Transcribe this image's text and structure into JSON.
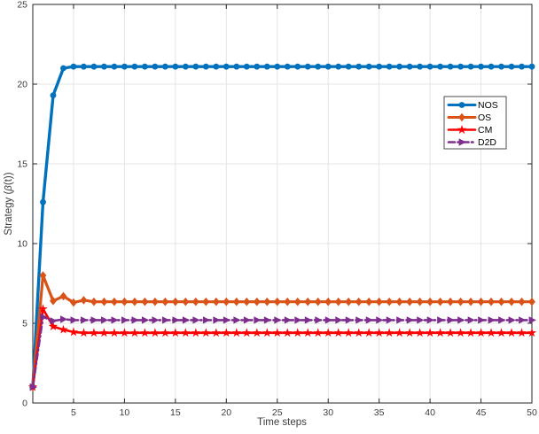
{
  "figure": {
    "background": "#ffffff",
    "axis_color": "#262626",
    "grid_color": "#e4e4e4",
    "tick_label_color": "#3b3b3b",
    "legend_border_color": "#4d4d4d"
  },
  "chart_data": {
    "type": "line",
    "title": "",
    "xlabel": "Time steps",
    "ylabel": "Strategy (β(t))",
    "xlim": [
      1,
      50
    ],
    "ylim": [
      0,
      25
    ],
    "xticks": [
      5,
      10,
      15,
      20,
      25,
      30,
      35,
      40,
      45,
      50
    ],
    "yticks": [
      0,
      5,
      10,
      15,
      20,
      25
    ],
    "grid": true,
    "legend_position": "upper-right-inside",
    "x": [
      1,
      2,
      3,
      4,
      5,
      6,
      7,
      8,
      9,
      10,
      11,
      12,
      13,
      14,
      15,
      16,
      17,
      18,
      19,
      20,
      21,
      22,
      23,
      24,
      25,
      26,
      27,
      28,
      29,
      30,
      31,
      32,
      33,
      34,
      35,
      36,
      37,
      38,
      39,
      40,
      41,
      42,
      43,
      44,
      45,
      46,
      47,
      48,
      49,
      50
    ],
    "series": [
      {
        "name": "NOS",
        "color": "#0072BD",
        "marker": "circle",
        "line_style": "solid",
        "line_width": 3.4,
        "values": [
          1.0,
          12.6,
          19.3,
          21.0,
          21.1,
          21.1,
          21.1,
          21.1,
          21.1,
          21.1,
          21.1,
          21.1,
          21.1,
          21.1,
          21.1,
          21.1,
          21.1,
          21.1,
          21.1,
          21.1,
          21.1,
          21.1,
          21.1,
          21.1,
          21.1,
          21.1,
          21.1,
          21.1,
          21.1,
          21.1,
          21.1,
          21.1,
          21.1,
          21.1,
          21.1,
          21.1,
          21.1,
          21.1,
          21.1,
          21.1,
          21.1,
          21.1,
          21.1,
          21.1,
          21.1,
          21.1,
          21.1,
          21.1,
          21.1,
          21.1
        ]
      },
      {
        "name": "OS",
        "color": "#D95319",
        "marker": "diamond",
        "line_style": "solid",
        "line_width": 3.2,
        "values": [
          1.0,
          8.0,
          6.4,
          6.7,
          6.3,
          6.45,
          6.35,
          6.35,
          6.35,
          6.35,
          6.35,
          6.35,
          6.35,
          6.35,
          6.35,
          6.35,
          6.35,
          6.35,
          6.35,
          6.35,
          6.35,
          6.35,
          6.35,
          6.35,
          6.35,
          6.35,
          6.35,
          6.35,
          6.35,
          6.35,
          6.35,
          6.35,
          6.35,
          6.35,
          6.35,
          6.35,
          6.35,
          6.35,
          6.35,
          6.35,
          6.35,
          6.35,
          6.35,
          6.35,
          6.35,
          6.35,
          6.35,
          6.35,
          6.35,
          6.35
        ]
      },
      {
        "name": "CM",
        "color": "#FF0000",
        "marker": "star",
        "line_style": "solid",
        "line_width": 2.6,
        "values": [
          1.0,
          5.9,
          4.8,
          4.6,
          4.45,
          4.4,
          4.4,
          4.4,
          4.4,
          4.4,
          4.4,
          4.4,
          4.4,
          4.4,
          4.4,
          4.4,
          4.4,
          4.4,
          4.4,
          4.4,
          4.4,
          4.4,
          4.4,
          4.4,
          4.4,
          4.4,
          4.4,
          4.4,
          4.4,
          4.4,
          4.4,
          4.4,
          4.4,
          4.4,
          4.4,
          4.4,
          4.4,
          4.4,
          4.4,
          4.4,
          4.4,
          4.4,
          4.4,
          4.4,
          4.4,
          4.4,
          4.4,
          4.4,
          4.4,
          4.4
        ]
      },
      {
        "name": "D2D",
        "color": "#7E2F8E",
        "marker": "triangle-right",
        "line_style": "dash-dot",
        "line_width": 2.6,
        "values": [
          1.0,
          5.4,
          5.15,
          5.25,
          5.2,
          5.2,
          5.2,
          5.2,
          5.2,
          5.2,
          5.2,
          5.2,
          5.2,
          5.2,
          5.2,
          5.2,
          5.2,
          5.2,
          5.2,
          5.2,
          5.2,
          5.2,
          5.2,
          5.2,
          5.2,
          5.2,
          5.2,
          5.2,
          5.2,
          5.2,
          5.2,
          5.2,
          5.2,
          5.2,
          5.2,
          5.2,
          5.2,
          5.2,
          5.2,
          5.2,
          5.2,
          5.2,
          5.2,
          5.2,
          5.2,
          5.2,
          5.2,
          5.2,
          5.2,
          5.2
        ]
      }
    ]
  }
}
